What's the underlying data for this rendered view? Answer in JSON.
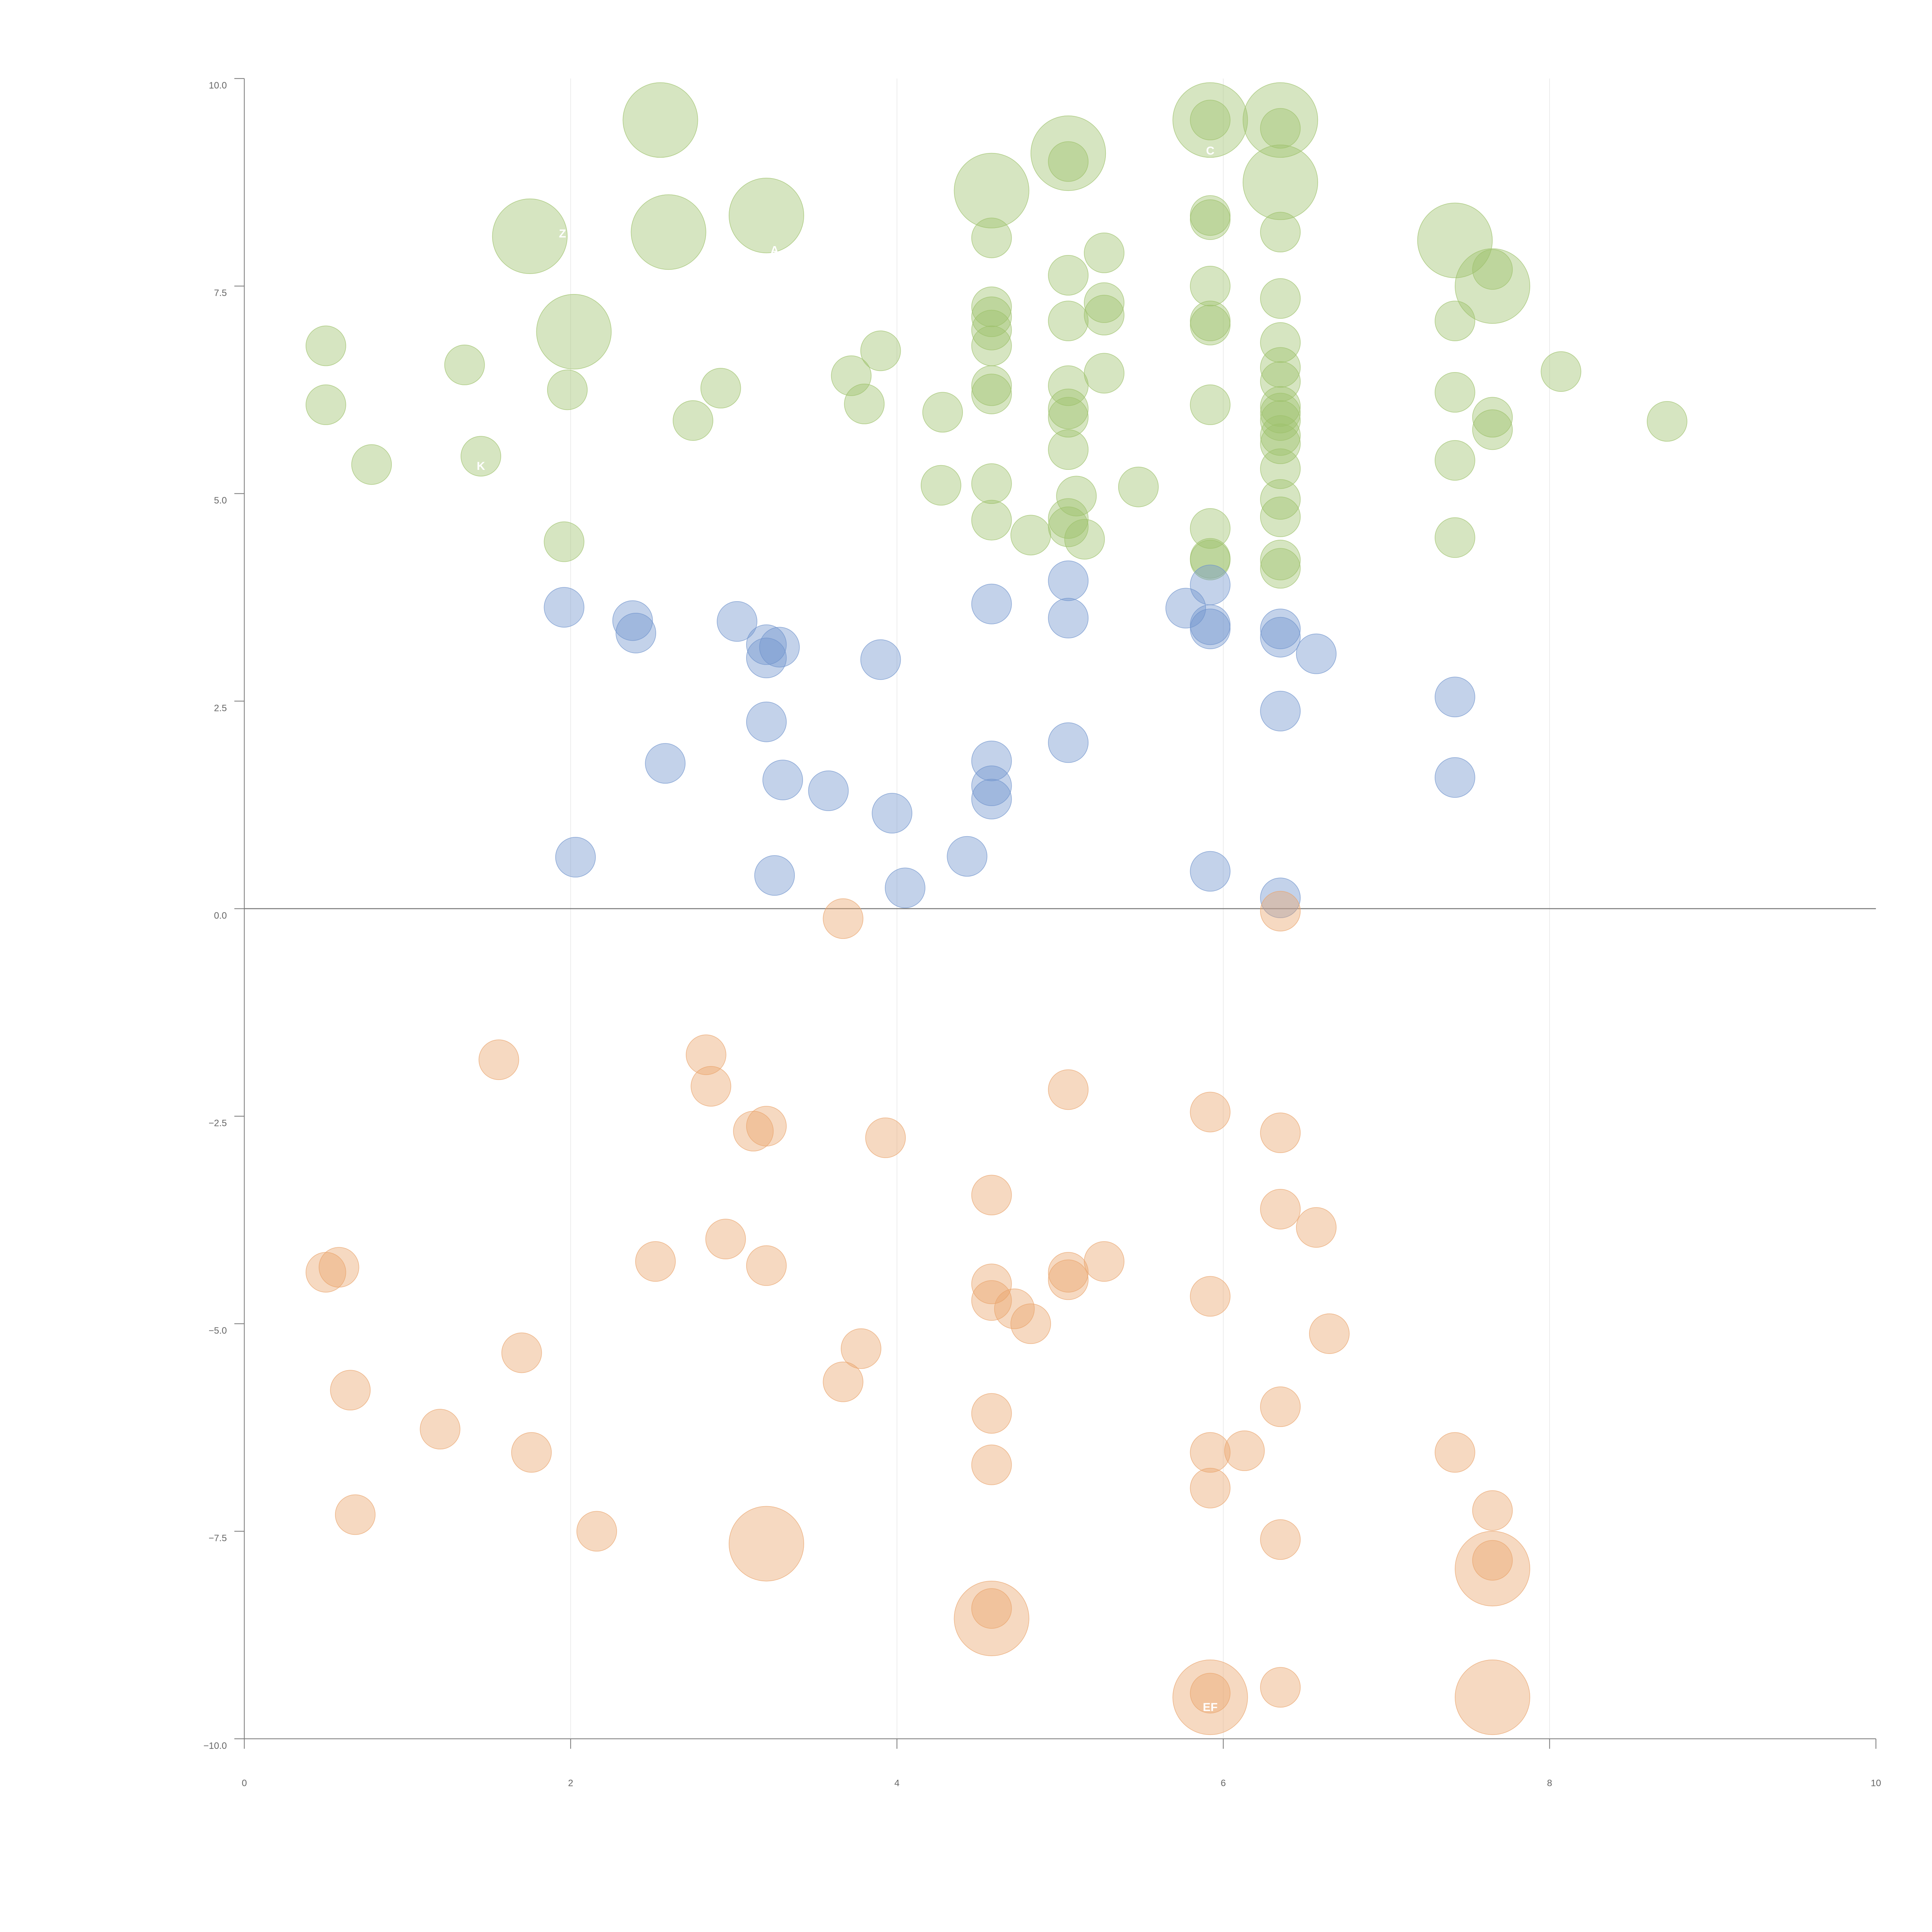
{
  "chart_data": {
    "type": "scatter",
    "title": "",
    "xlabel": "",
    "ylabel": "",
    "xlim": [
      0,
      10
    ],
    "ylim": [
      -10,
      10
    ],
    "x_ticks": [
      "0",
      "2",
      "4",
      "6",
      "8",
      "10"
    ],
    "y_ticks": [
      "10.0",
      "7.5",
      "5.0",
      "2.5",
      "0.0",
      "−2.5",
      "−5.0",
      "−7.5",
      "−10.0"
    ],
    "x_tick_values": [
      0,
      2,
      4,
      6,
      8,
      10
    ],
    "y_tick_values": [
      10,
      7.5,
      5,
      2.5,
      0,
      -2.5,
      -5,
      -7.5,
      -10
    ],
    "vertical_grid_at": [
      2,
      4,
      6,
      8
    ],
    "reference_line_y": 0,
    "legend": "none",
    "colors": {
      "green": "#9dc16b",
      "blue": "#6f93cc",
      "orange": "#e9a46c"
    },
    "series": [
      {
        "color": "#9dc16b",
        "points": [
          {
            "x": 2.55,
            "y": 9.5,
            "size": 2
          },
          {
            "x": 5.05,
            "y": 9.1,
            "size": 2
          },
          {
            "x": 5.92,
            "y": 9.5,
            "size": 2
          },
          {
            "x": 6.35,
            "y": 9.5,
            "size": 2
          },
          {
            "x": 6.35,
            "y": 8.75,
            "size": 2
          },
          {
            "x": 4.58,
            "y": 8.65,
            "size": 2
          },
          {
            "x": 1.75,
            "y": 8.1,
            "size": 2
          },
          {
            "x": 2.6,
            "y": 8.15,
            "size": 2
          },
          {
            "x": 3.2,
            "y": 8.35,
            "size": 2
          },
          {
            "x": 7.42,
            "y": 8.05,
            "size": 2
          },
          {
            "x": 7.65,
            "y": 7.5,
            "size": 2
          },
          {
            "x": 2.02,
            "y": 6.95,
            "size": 2
          },
          {
            "x": 5.92,
            "y": 9.5,
            "size": 1
          },
          {
            "x": 6.35,
            "y": 9.4,
            "size": 1
          },
          {
            "x": 5.05,
            "y": 9.0,
            "size": 1
          },
          {
            "x": 5.92,
            "y": 8.35,
            "size": 1
          },
          {
            "x": 5.92,
            "y": 8.3,
            "size": 1
          },
          {
            "x": 6.35,
            "y": 8.15,
            "size": 1
          },
          {
            "x": 4.58,
            "y": 8.08,
            "size": 1
          },
          {
            "x": 5.27,
            "y": 7.9,
            "size": 1
          },
          {
            "x": 7.65,
            "y": 7.7,
            "size": 1
          },
          {
            "x": 5.05,
            "y": 7.63,
            "size": 1
          },
          {
            "x": 5.92,
            "y": 7.5,
            "size": 1
          },
          {
            "x": 6.35,
            "y": 7.35,
            "size": 1
          },
          {
            "x": 5.27,
            "y": 7.3,
            "size": 1
          },
          {
            "x": 4.58,
            "y": 7.25,
            "size": 1
          },
          {
            "x": 5.27,
            "y": 7.15,
            "size": 1
          },
          {
            "x": 4.58,
            "y": 7.13,
            "size": 1
          },
          {
            "x": 5.05,
            "y": 7.08,
            "size": 1
          },
          {
            "x": 5.92,
            "y": 7.08,
            "size": 1
          },
          {
            "x": 7.42,
            "y": 7.08,
            "size": 1
          },
          {
            "x": 5.92,
            "y": 7.03,
            "size": 1
          },
          {
            "x": 4.58,
            "y": 6.97,
            "size": 1
          },
          {
            "x": 6.35,
            "y": 6.82,
            "size": 1
          },
          {
            "x": 0.5,
            "y": 6.78,
            "size": 1
          },
          {
            "x": 4.58,
            "y": 6.78,
            "size": 1
          },
          {
            "x": 3.9,
            "y": 6.72,
            "size": 1
          },
          {
            "x": 1.35,
            "y": 6.55,
            "size": 1
          },
          {
            "x": 6.35,
            "y": 6.52,
            "size": 1
          },
          {
            "x": 8.07,
            "y": 6.47,
            "size": 1
          },
          {
            "x": 5.27,
            "y": 6.45,
            "size": 1
          },
          {
            "x": 3.72,
            "y": 6.42,
            "size": 1
          },
          {
            "x": 6.35,
            "y": 6.35,
            "size": 1
          },
          {
            "x": 5.05,
            "y": 6.3,
            "size": 1
          },
          {
            "x": 4.58,
            "y": 6.3,
            "size": 1
          },
          {
            "x": 2.92,
            "y": 6.27,
            "size": 1
          },
          {
            "x": 1.98,
            "y": 6.25,
            "size": 1
          },
          {
            "x": 7.42,
            "y": 6.22,
            "size": 1
          },
          {
            "x": 4.58,
            "y": 6.2,
            "size": 1
          },
          {
            "x": 3.8,
            "y": 6.08,
            "size": 1
          },
          {
            "x": 0.5,
            "y": 6.07,
            "size": 1
          },
          {
            "x": 5.92,
            "y": 6.07,
            "size": 1
          },
          {
            "x": 6.35,
            "y": 6.05,
            "size": 1
          },
          {
            "x": 5.05,
            "y": 6.02,
            "size": 1
          },
          {
            "x": 6.35,
            "y": 5.97,
            "size": 1
          },
          {
            "x": 4.28,
            "y": 5.98,
            "size": 1
          },
          {
            "x": 5.05,
            "y": 5.92,
            "size": 1
          },
          {
            "x": 7.65,
            "y": 5.92,
            "size": 1
          },
          {
            "x": 2.75,
            "y": 5.88,
            "size": 1
          },
          {
            "x": 6.35,
            "y": 5.88,
            "size": 1
          },
          {
            "x": 8.72,
            "y": 5.87,
            "size": 1
          },
          {
            "x": 7.65,
            "y": 5.77,
            "size": 1
          },
          {
            "x": 6.35,
            "y": 5.7,
            "size": 1
          },
          {
            "x": 6.35,
            "y": 5.6,
            "size": 1
          },
          {
            "x": 5.05,
            "y": 5.53,
            "size": 1
          },
          {
            "x": 1.45,
            "y": 5.45,
            "size": 1
          },
          {
            "x": 7.42,
            "y": 5.4,
            "size": 1
          },
          {
            "x": 0.78,
            "y": 5.35,
            "size": 1
          },
          {
            "x": 6.35,
            "y": 5.3,
            "size": 1
          },
          {
            "x": 4.58,
            "y": 5.12,
            "size": 1
          },
          {
            "x": 4.27,
            "y": 5.1,
            "size": 1
          },
          {
            "x": 5.48,
            "y": 5.08,
            "size": 1
          },
          {
            "x": 5.1,
            "y": 4.97,
            "size": 1
          },
          {
            "x": 6.35,
            "y": 4.93,
            "size": 1
          },
          {
            "x": 6.35,
            "y": 4.72,
            "size": 1
          },
          {
            "x": 4.58,
            "y": 4.68,
            "size": 1
          },
          {
            "x": 5.05,
            "y": 4.7,
            "size": 1
          },
          {
            "x": 5.05,
            "y": 4.6,
            "size": 1
          },
          {
            "x": 5.92,
            "y": 4.58,
            "size": 1
          },
          {
            "x": 4.82,
            "y": 4.5,
            "size": 1
          },
          {
            "x": 7.42,
            "y": 4.47,
            "size": 1
          },
          {
            "x": 5.15,
            "y": 4.45,
            "size": 1
          },
          {
            "x": 1.96,
            "y": 4.42,
            "size": 1
          },
          {
            "x": 5.92,
            "y": 4.22,
            "size": 1
          },
          {
            "x": 5.92,
            "y": 4.2,
            "size": 1
          },
          {
            "x": 6.35,
            "y": 4.2,
            "size": 1
          },
          {
            "x": 6.35,
            "y": 4.1,
            "size": 1
          }
        ]
      },
      {
        "color": "#6f93cc",
        "points": [
          {
            "x": 5.05,
            "y": 3.95,
            "size": 1
          },
          {
            "x": 5.92,
            "y": 3.9,
            "size": 1
          },
          {
            "x": 4.58,
            "y": 3.67,
            "size": 1
          },
          {
            "x": 1.96,
            "y": 3.63,
            "size": 1
          },
          {
            "x": 5.77,
            "y": 3.62,
            "size": 1
          },
          {
            "x": 5.05,
            "y": 3.5,
            "size": 1
          },
          {
            "x": 2.38,
            "y": 3.47,
            "size": 1
          },
          {
            "x": 3.02,
            "y": 3.46,
            "size": 1
          },
          {
            "x": 5.92,
            "y": 3.42,
            "size": 1
          },
          {
            "x": 5.92,
            "y": 3.37,
            "size": 1
          },
          {
            "x": 6.35,
            "y": 3.37,
            "size": 1
          },
          {
            "x": 2.4,
            "y": 3.32,
            "size": 1
          },
          {
            "x": 6.35,
            "y": 3.27,
            "size": 1
          },
          {
            "x": 3.2,
            "y": 3.18,
            "size": 1
          },
          {
            "x": 3.28,
            "y": 3.15,
            "size": 1
          },
          {
            "x": 6.57,
            "y": 3.07,
            "size": 1
          },
          {
            "x": 3.2,
            "y": 3.02,
            "size": 1
          },
          {
            "x": 3.9,
            "y": 3.0,
            "size": 1
          },
          {
            "x": 7.42,
            "y": 2.55,
            "size": 1
          },
          {
            "x": 6.35,
            "y": 2.38,
            "size": 1
          },
          {
            "x": 3.2,
            "y": 2.25,
            "size": 1
          },
          {
            "x": 5.05,
            "y": 2.0,
            "size": 1
          },
          {
            "x": 4.58,
            "y": 1.78,
            "size": 1
          },
          {
            "x": 2.58,
            "y": 1.75,
            "size": 1
          },
          {
            "x": 7.42,
            "y": 1.58,
            "size": 1
          },
          {
            "x": 3.3,
            "y": 1.55,
            "size": 1
          },
          {
            "x": 4.58,
            "y": 1.48,
            "size": 1
          },
          {
            "x": 3.58,
            "y": 1.42,
            "size": 1
          },
          {
            "x": 4.58,
            "y": 1.32,
            "size": 1
          },
          {
            "x": 3.97,
            "y": 1.15,
            "size": 1
          },
          {
            "x": 2.03,
            "y": 0.62,
            "size": 1
          },
          {
            "x": 4.43,
            "y": 0.63,
            "size": 1
          },
          {
            "x": 5.92,
            "y": 0.45,
            "size": 1
          },
          {
            "x": 3.25,
            "y": 0.4,
            "size": 1
          },
          {
            "x": 4.05,
            "y": 0.25,
            "size": 1
          },
          {
            "x": 6.35,
            "y": 0.13,
            "size": 1
          }
        ]
      },
      {
        "color": "#e9a46c",
        "points": [
          {
            "x": 6.35,
            "y": -0.03,
            "size": 1
          },
          {
            "x": 3.67,
            "y": -0.12,
            "size": 1
          },
          {
            "x": 1.56,
            "y": -1.82,
            "size": 1
          },
          {
            "x": 2.83,
            "y": -1.76,
            "size": 1
          },
          {
            "x": 2.86,
            "y": -2.14,
            "size": 1
          },
          {
            "x": 5.05,
            "y": -2.18,
            "size": 1
          },
          {
            "x": 5.92,
            "y": -2.45,
            "size": 1
          },
          {
            "x": 3.2,
            "y": -2.62,
            "size": 1
          },
          {
            "x": 3.12,
            "y": -2.68,
            "size": 1
          },
          {
            "x": 6.35,
            "y": -2.7,
            "size": 1
          },
          {
            "x": 3.93,
            "y": -2.76,
            "size": 1
          },
          {
            "x": 4.58,
            "y": -3.45,
            "size": 1
          },
          {
            "x": 6.35,
            "y": -3.62,
            "size": 1
          },
          {
            "x": 6.57,
            "y": -3.84,
            "size": 1
          },
          {
            "x": 2.95,
            "y": -3.98,
            "size": 1
          },
          {
            "x": 2.52,
            "y": -4.25,
            "size": 1
          },
          {
            "x": 5.27,
            "y": -4.25,
            "size": 1
          },
          {
            "x": 0.58,
            "y": -4.32,
            "size": 1
          },
          {
            "x": 3.2,
            "y": -4.3,
            "size": 1
          },
          {
            "x": 0.5,
            "y": -4.38,
            "size": 1
          },
          {
            "x": 5.05,
            "y": -4.38,
            "size": 1
          },
          {
            "x": 5.05,
            "y": -4.47,
            "size": 1
          },
          {
            "x": 4.58,
            "y": -4.52,
            "size": 1
          },
          {
            "x": 5.92,
            "y": -4.67,
            "size": 1
          },
          {
            "x": 4.58,
            "y": -4.72,
            "size": 1
          },
          {
            "x": 4.72,
            "y": -4.82,
            "size": 1
          },
          {
            "x": 4.82,
            "y": -5.0,
            "size": 1
          },
          {
            "x": 6.65,
            "y": -5.12,
            "size": 1
          },
          {
            "x": 3.78,
            "y": -5.3,
            "size": 1
          },
          {
            "x": 1.7,
            "y": -5.35,
            "size": 1
          },
          {
            "x": 3.67,
            "y": -5.7,
            "size": 1
          },
          {
            "x": 0.65,
            "y": -5.8,
            "size": 1
          },
          {
            "x": 6.35,
            "y": -6.0,
            "size": 1
          },
          {
            "x": 4.58,
            "y": -6.08,
            "size": 1
          },
          {
            "x": 1.2,
            "y": -6.27,
            "size": 1
          },
          {
            "x": 1.76,
            "y": -6.55,
            "size": 1
          },
          {
            "x": 5.92,
            "y": -6.55,
            "size": 1
          },
          {
            "x": 6.13,
            "y": -6.53,
            "size": 1
          },
          {
            "x": 7.42,
            "y": -6.55,
            "size": 1
          },
          {
            "x": 4.58,
            "y": -6.7,
            "size": 1
          },
          {
            "x": 5.92,
            "y": -6.98,
            "size": 1
          },
          {
            "x": 7.65,
            "y": -7.25,
            "size": 1
          },
          {
            "x": 0.68,
            "y": -7.3,
            "size": 1
          },
          {
            "x": 2.16,
            "y": -7.5,
            "size": 1
          },
          {
            "x": 6.35,
            "y": -7.6,
            "size": 1
          },
          {
            "x": 7.65,
            "y": -7.85,
            "size": 1
          },
          {
            "x": 4.58,
            "y": -8.43,
            "size": 1
          },
          {
            "x": 5.92,
            "y": -9.45,
            "size": 1
          },
          {
            "x": 6.35,
            "y": -9.38,
            "size": 1
          },
          {
            "x": 3.2,
            "y": -7.65,
            "size": 2
          },
          {
            "x": 7.65,
            "y": -7.95,
            "size": 2
          },
          {
            "x": 4.58,
            "y": -8.55,
            "size": 2
          },
          {
            "x": 5.92,
            "y": -9.5,
            "size": 2
          },
          {
            "x": 7.65,
            "y": -9.5,
            "size": 2
          }
        ]
      }
    ],
    "point_labels": [
      {
        "text": "C",
        "x": 5.92,
        "y": 9.25
      },
      {
        "text": "Z",
        "x": 1.95,
        "y": 8.25
      },
      {
        "text": "A",
        "x": 3.25,
        "y": 8.05
      },
      {
        "text": "K",
        "x": 1.45,
        "y": 5.45
      },
      {
        "text": "EF",
        "x": 5.92,
        "y": -9.5
      }
    ]
  }
}
